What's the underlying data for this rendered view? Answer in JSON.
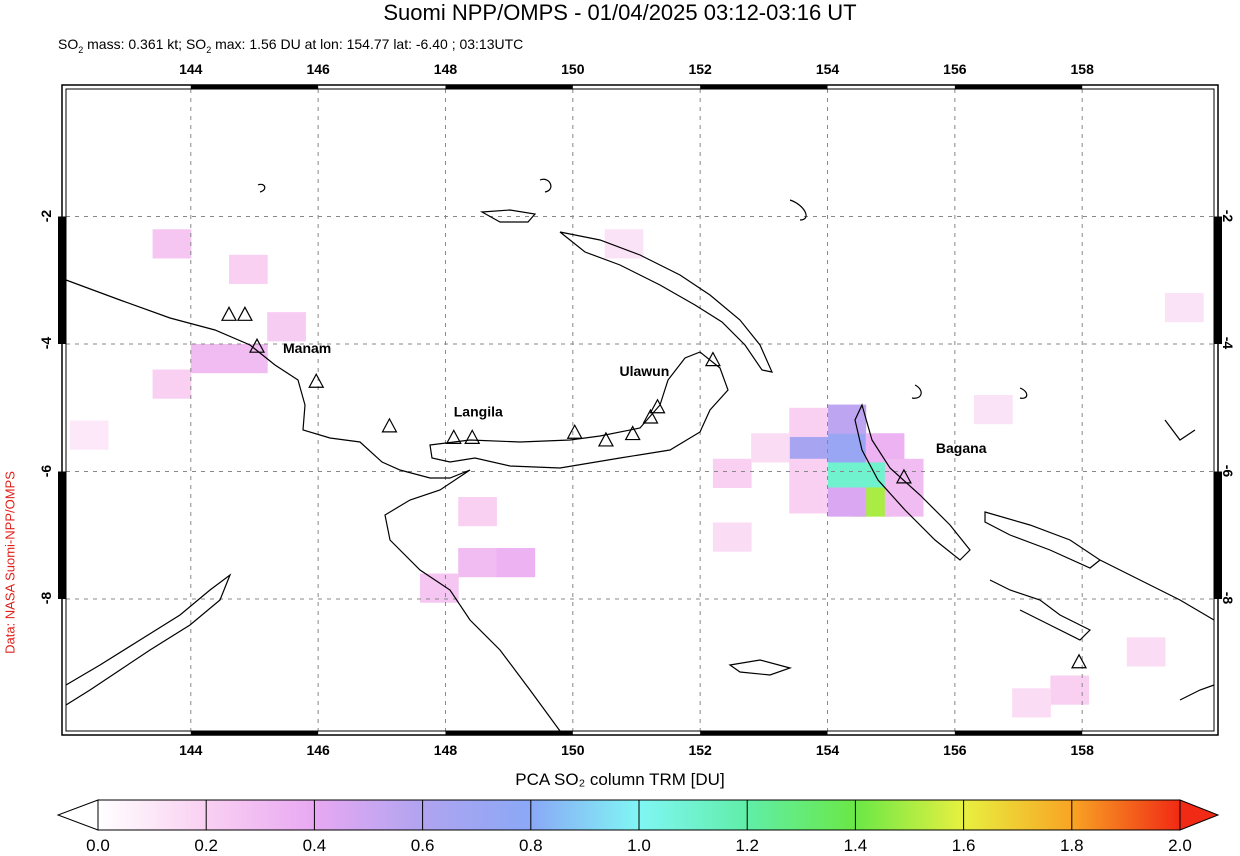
{
  "title": "Suomi NPP/OMPS - 01/04/2025 03:12-03:16 UT",
  "subtitle": {
    "so2_mass_label": "SO",
    "so2_mass": "mass: 0.361 kt; SO",
    "rest": "max: 1.56 DU at lon: 154.77 lat: -6.40 ; 03:13UTC"
  },
  "side_label": "Data: NASA Suomi-NPP/OMPS",
  "map": {
    "lon_range": [
      142.04,
      160.07
    ],
    "lat_range": [
      -10.07,
      0.0
    ],
    "grid": true,
    "lon_ticks": [
      "144",
      "146",
      "148",
      "150",
      "152",
      "154",
      "156",
      "158"
    ],
    "lat_ticks": [
      "-2",
      "-4",
      "-6",
      "-8"
    ],
    "volcanoes": [
      {
        "name": "",
        "lon": 144.6,
        "lat": -3.55
      },
      {
        "name": "",
        "lon": 144.85,
        "lat": -3.55
      },
      {
        "name": "Manam",
        "lon": 145.04,
        "lat": -4.05
      },
      {
        "name": "",
        "lon": 145.97,
        "lat": -4.6
      },
      {
        "name": "",
        "lon": 147.12,
        "lat": -5.3
      },
      {
        "name": "Langila",
        "lon": 148.13,
        "lat": -5.48
      },
      {
        "name": "",
        "lon": 148.42,
        "lat": -5.48
      },
      {
        "name": "",
        "lon": 150.03,
        "lat": -5.4
      },
      {
        "name": "",
        "lon": 150.52,
        "lat": -5.52
      },
      {
        "name": "",
        "lon": 150.94,
        "lat": -5.42
      },
      {
        "name": "",
        "lon": 151.22,
        "lat": -5.16
      },
      {
        "name": "Ulawun",
        "lon": 151.33,
        "lat": -5.0
      },
      {
        "name": "",
        "lon": 152.2,
        "lat": -4.26
      },
      {
        "name": "Bagana",
        "lon": 155.2,
        "lat": -6.1
      },
      {
        "name": "",
        "lon": 157.95,
        "lat": -9.0
      }
    ],
    "so2_cells": [
      {
        "lon": 154.0,
        "lat": -5.8,
        "value": 1.1
      },
      {
        "lon": 154.4,
        "lat": -5.8,
        "value": 1.1
      },
      {
        "lon": 154.4,
        "lat": -6.25,
        "value": 1.5
      },
      {
        "lon": 154.0,
        "lat": -6.25,
        "value": 0.45
      },
      {
        "lon": 153.4,
        "lat": -5.4,
        "value": 0.65
      },
      {
        "lon": 154.0,
        "lat": -5.4,
        "value": 0.72
      },
      {
        "lon": 154.0,
        "lat": -4.95,
        "value": 0.55
      },
      {
        "lon": 154.6,
        "lat": -5.4,
        "value": 0.35
      },
      {
        "lon": 154.9,
        "lat": -5.8,
        "value": 0.3
      },
      {
        "lon": 154.9,
        "lat": -6.25,
        "value": 0.3
      },
      {
        "lon": 153.4,
        "lat": -5.0,
        "value": 0.2
      },
      {
        "lon": 152.2,
        "lat": -5.8,
        "value": 0.2
      },
      {
        "lon": 152.8,
        "lat": -5.4,
        "value": 0.15
      },
      {
        "lon": 153.4,
        "lat": -5.8,
        "value": 0.2
      },
      {
        "lon": 153.4,
        "lat": -6.2,
        "value": 0.2
      },
      {
        "lon": 152.2,
        "lat": -6.8,
        "value": 0.15
      },
      {
        "lon": 144.0,
        "lat": -4.0,
        "value": 0.3
      },
      {
        "lon": 144.6,
        "lat": -4.0,
        "value": 0.3
      },
      {
        "lon": 143.4,
        "lat": -4.4,
        "value": 0.2
      },
      {
        "lon": 145.2,
        "lat": -3.5,
        "value": 0.22
      },
      {
        "lon": 143.4,
        "lat": -2.2,
        "value": 0.25
      },
      {
        "lon": 144.6,
        "lat": -2.6,
        "value": 0.2
      },
      {
        "lon": 148.2,
        "lat": -7.2,
        "value": 0.3
      },
      {
        "lon": 148.8,
        "lat": -7.2,
        "value": 0.35
      },
      {
        "lon": 147.6,
        "lat": -7.6,
        "value": 0.25
      },
      {
        "lon": 148.2,
        "lat": -6.4,
        "value": 0.2
      },
      {
        "lon": 150.5,
        "lat": -2.2,
        "value": 0.12
      },
      {
        "lon": 156.3,
        "lat": -4.8,
        "value": 0.12
      },
      {
        "lon": 157.5,
        "lat": -9.2,
        "value": 0.2
      },
      {
        "lon": 156.9,
        "lat": -9.4,
        "value": 0.15
      },
      {
        "lon": 158.7,
        "lat": -8.6,
        "value": 0.15
      },
      {
        "lon": 159.3,
        "lat": -3.2,
        "value": 0.12
      },
      {
        "lon": 142.1,
        "lat": -5.2,
        "value": 0.1
      }
    ]
  },
  "colorbar": {
    "title": "PCA SO₂ column TRM [DU]",
    "range": [
      0.0,
      2.0
    ],
    "tick_labels": [
      "0.0",
      "0.2",
      "0.4",
      "0.6",
      "0.8",
      "1.0",
      "1.2",
      "1.4",
      "1.6",
      "1.8",
      "2.0"
    ],
    "colors": [
      "#ffffff",
      "#f9d0f2",
      "#e8a8f2",
      "#b0a4f0",
      "#8aa8f6",
      "#80f6f4",
      "#60eea8",
      "#6ae846",
      "#e8f040",
      "#f8a424",
      "#f02a14"
    ]
  }
}
